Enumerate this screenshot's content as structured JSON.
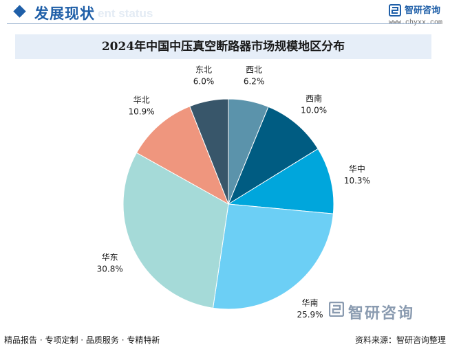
{
  "header": {
    "title": "发展现状",
    "subtitle": "ent status",
    "brand_name": "智研咨询",
    "brand_url": "www.chyxx.com"
  },
  "chart_data": {
    "type": "pie",
    "title": "2024年中国中压真空断路器市场规模地区分布",
    "start_angle_deg": 0,
    "direction": "clockwise",
    "slices": [
      {
        "name": "西北",
        "value": 6.2,
        "label": "6.2%",
        "color": "#5b93ab"
      },
      {
        "name": "西南",
        "value": 10.0,
        "label": "10.0%",
        "color": "#005c82"
      },
      {
        "name": "华中",
        "value": 10.3,
        "label": "10.3%",
        "color": "#00a6dc"
      },
      {
        "name": "华南",
        "value": 25.9,
        "label": "25.9%",
        "color": "#6ccff5"
      },
      {
        "name": "华东",
        "value": 30.8,
        "label": "30.8%",
        "color": "#a5dad8"
      },
      {
        "name": "华北",
        "value": 10.9,
        "label": "10.9%",
        "color": "#ef967e"
      },
      {
        "name": "东北",
        "value": 6.0,
        "label": "6.0%",
        "color": "#38566a"
      }
    ]
  },
  "watermark": {
    "text": "智研咨询"
  },
  "footer": {
    "left": "精品报告 · 专项定制 · 品质服务 · 专精特新",
    "right": "资料来源：智研咨询整理"
  }
}
